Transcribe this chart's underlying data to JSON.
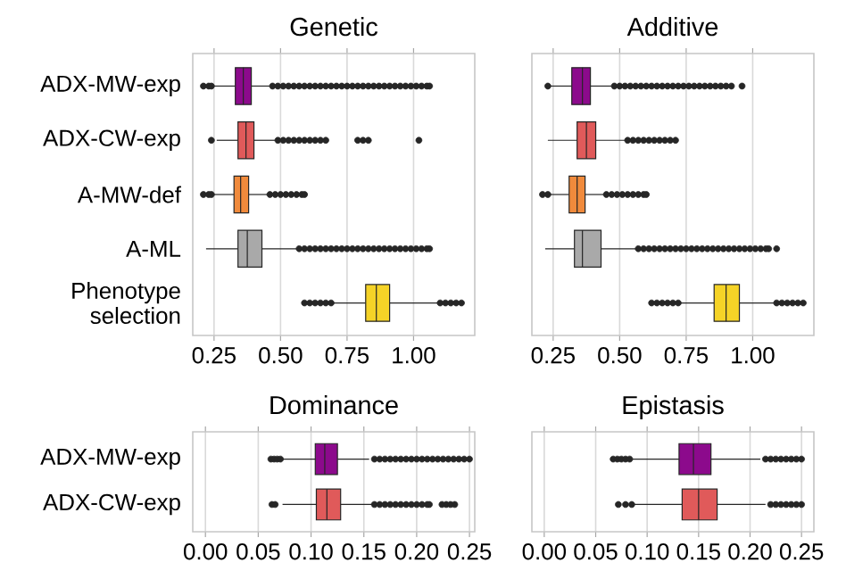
{
  "chart_data": [
    {
      "type": "box",
      "orientation": "horizontal",
      "title": "Genetic",
      "grid": "x",
      "categories": [
        "ADX-MW-exp",
        "ADX-CW-exp",
        "A-MW-def",
        "A-ML",
        "Phenotype selection"
      ],
      "colors": [
        "#8c0a8c",
        "#e05a5a",
        "#f08a3c",
        "#a9a9a9",
        "#f5d327"
      ],
      "xlim": [
        0.17,
        1.23
      ],
      "xticks": [
        {
          "value": 0.25,
          "label": "0.25"
        },
        {
          "value": 0.5,
          "label": "0.50"
        },
        {
          "value": 0.75,
          "label": "0.75"
        },
        {
          "value": 1.0,
          "label": "1.00"
        }
      ],
      "boxes": [
        {
          "low": 0.25,
          "q1": 0.33,
          "median": 0.36,
          "q3": 0.39,
          "high": 0.46,
          "outliers": [
            0.21,
            0.23,
            0.24,
            0.47,
            0.49,
            0.51,
            0.53,
            0.55,
            0.57,
            0.59,
            0.61,
            0.63,
            0.65,
            0.67,
            0.69,
            0.71,
            0.73,
            0.75,
            0.77,
            0.79,
            0.81,
            0.83,
            0.85,
            0.87,
            0.89,
            0.91,
            0.93,
            0.95,
            0.97,
            0.99,
            1.01,
            1.03,
            1.05,
            1.06
          ]
        },
        {
          "low": 0.26,
          "q1": 0.34,
          "median": 0.37,
          "q3": 0.4,
          "high": 0.485,
          "outliers": [
            0.24,
            0.49,
            0.51,
            0.53,
            0.55,
            0.57,
            0.59,
            0.61,
            0.63,
            0.65,
            0.67,
            0.79,
            0.81,
            0.83,
            1.02
          ]
        },
        {
          "low": 0.25,
          "q1": 0.325,
          "median": 0.35,
          "q3": 0.38,
          "high": 0.455,
          "outliers": [
            0.21,
            0.23,
            0.24,
            0.46,
            0.48,
            0.5,
            0.52,
            0.54,
            0.56,
            0.58,
            0.59
          ]
        },
        {
          "low": 0.22,
          "q1": 0.34,
          "median": 0.375,
          "q3": 0.43,
          "high": 0.56,
          "outliers": [
            0.57,
            0.59,
            0.61,
            0.63,
            0.65,
            0.67,
            0.69,
            0.71,
            0.73,
            0.75,
            0.77,
            0.79,
            0.81,
            0.83,
            0.85,
            0.87,
            0.89,
            0.91,
            0.93,
            0.95,
            0.97,
            0.99,
            1.01,
            1.03,
            1.05,
            1.06
          ]
        },
        {
          "low": 0.7,
          "q1": 0.82,
          "median": 0.86,
          "q3": 0.91,
          "high": 1.09,
          "outliers": [
            0.59,
            0.61,
            0.63,
            0.65,
            0.67,
            0.69,
            1.1,
            1.12,
            1.14,
            1.16,
            1.18
          ]
        }
      ]
    },
    {
      "type": "box",
      "orientation": "horizontal",
      "title": "Additive",
      "grid": "x",
      "tick_labels": "x",
      "categories": [
        null,
        null,
        null,
        null,
        null
      ],
      "colors": [
        "#8c0a8c",
        "#e05a5a",
        "#f08a3c",
        "#a9a9a9",
        "#f5d327"
      ],
      "xlim": [
        0.17,
        1.23
      ],
      "xticks": [
        {
          "value": 0.25,
          "label": "0.25"
        },
        {
          "value": 0.5,
          "label": "0.50"
        },
        {
          "value": 0.75,
          "label": "0.75"
        },
        {
          "value": 1.0,
          "label": "1.00"
        }
      ],
      "boxes": [
        {
          "low": 0.24,
          "q1": 0.32,
          "median": 0.36,
          "q3": 0.39,
          "high": 0.47,
          "outliers": [
            0.23,
            0.48,
            0.5,
            0.52,
            0.54,
            0.56,
            0.58,
            0.6,
            0.62,
            0.64,
            0.66,
            0.68,
            0.7,
            0.72,
            0.74,
            0.76,
            0.78,
            0.8,
            0.82,
            0.84,
            0.86,
            0.88,
            0.9,
            0.92,
            0.96
          ]
        },
        {
          "low": 0.23,
          "q1": 0.34,
          "median": 0.375,
          "q3": 0.41,
          "high": 0.52,
          "outliers": [
            0.53,
            0.55,
            0.57,
            0.59,
            0.61,
            0.63,
            0.65,
            0.67,
            0.69,
            0.71
          ]
        },
        {
          "low": 0.24,
          "q1": 0.31,
          "median": 0.34,
          "q3": 0.37,
          "high": 0.445,
          "outliers": [
            0.21,
            0.23,
            0.45,
            0.47,
            0.49,
            0.51,
            0.53,
            0.55,
            0.57,
            0.59,
            0.6
          ]
        },
        {
          "low": 0.22,
          "q1": 0.33,
          "median": 0.36,
          "q3": 0.43,
          "high": 0.56,
          "outliers": [
            0.57,
            0.59,
            0.61,
            0.63,
            0.65,
            0.67,
            0.69,
            0.71,
            0.73,
            0.75,
            0.77,
            0.79,
            0.81,
            0.83,
            0.85,
            0.87,
            0.89,
            0.91,
            0.93,
            0.95,
            0.97,
            0.99,
            1.01,
            1.03,
            1.05,
            1.06,
            1.09
          ]
        },
        {
          "low": 0.72,
          "q1": 0.855,
          "median": 0.9,
          "q3": 0.95,
          "high": 1.08,
          "outliers": [
            0.62,
            0.64,
            0.66,
            0.68,
            0.7,
            0.72,
            1.09,
            1.11,
            1.13,
            1.15,
            1.17,
            1.19
          ]
        }
      ]
    },
    {
      "type": "box",
      "orientation": "horizontal",
      "title": "Dominance",
      "grid": "x",
      "categories": [
        "ADX-MW-exp",
        "ADX-CW-exp"
      ],
      "colors": [
        "#8c0a8c",
        "#e05a5a"
      ],
      "xlim": [
        -0.012,
        0.255
      ],
      "xticks": [
        {
          "value": 0,
          "label": "0.00"
        },
        {
          "value": 0.05,
          "label": "0.05"
        },
        {
          "value": 0.1,
          "label": "0.10"
        },
        {
          "value": 0.15,
          "label": "0.15"
        },
        {
          "value": 0.2,
          "label": "0.20"
        },
        {
          "value": 0.25,
          "label": "0.25"
        }
      ],
      "boxes": [
        {
          "low": 0.073,
          "q1": 0.104,
          "median": 0.113,
          "q3": 0.125,
          "high": 0.155,
          "outliers": [
            0.062,
            0.065,
            0.068,
            0.071,
            0.16,
            0.165,
            0.17,
            0.175,
            0.18,
            0.185,
            0.19,
            0.195,
            0.2,
            0.205,
            0.21,
            0.215,
            0.22,
            0.225,
            0.23,
            0.235,
            0.24,
            0.245,
            0.25
          ]
        },
        {
          "low": 0.073,
          "q1": 0.105,
          "median": 0.115,
          "q3": 0.128,
          "high": 0.158,
          "outliers": [
            0.063,
            0.066,
            0.16,
            0.165,
            0.17,
            0.175,
            0.18,
            0.185,
            0.19,
            0.195,
            0.2,
            0.205,
            0.21,
            0.212,
            0.224,
            0.228,
            0.232,
            0.236
          ]
        }
      ]
    },
    {
      "type": "box",
      "orientation": "horizontal",
      "title": "Epistasis",
      "grid": "x",
      "tick_labels": "x",
      "categories": [
        null,
        null
      ],
      "colors": [
        "#8c0a8c",
        "#e05a5a"
      ],
      "xlim": [
        -0.012,
        0.262
      ],
      "xticks": [
        {
          "value": 0,
          "label": "0.00"
        },
        {
          "value": 0.05,
          "label": "0.05"
        },
        {
          "value": 0.1,
          "label": "0.10"
        },
        {
          "value": 0.15,
          "label": "0.15"
        },
        {
          "value": 0.2,
          "label": "0.20"
        },
        {
          "value": 0.25,
          "label": "0.25"
        }
      ],
      "boxes": [
        {
          "low": 0.085,
          "q1": 0.131,
          "median": 0.145,
          "q3": 0.162,
          "high": 0.21,
          "outliers": [
            0.067,
            0.071,
            0.075,
            0.079,
            0.083,
            0.215,
            0.22,
            0.225,
            0.23,
            0.235,
            0.24,
            0.245,
            0.25
          ]
        },
        {
          "low": 0.087,
          "q1": 0.134,
          "median": 0.15,
          "q3": 0.168,
          "high": 0.215,
          "outliers": [
            0.072,
            0.079,
            0.085,
            0.22,
            0.225,
            0.23,
            0.235,
            0.24,
            0.245,
            0.25
          ]
        }
      ]
    }
  ]
}
